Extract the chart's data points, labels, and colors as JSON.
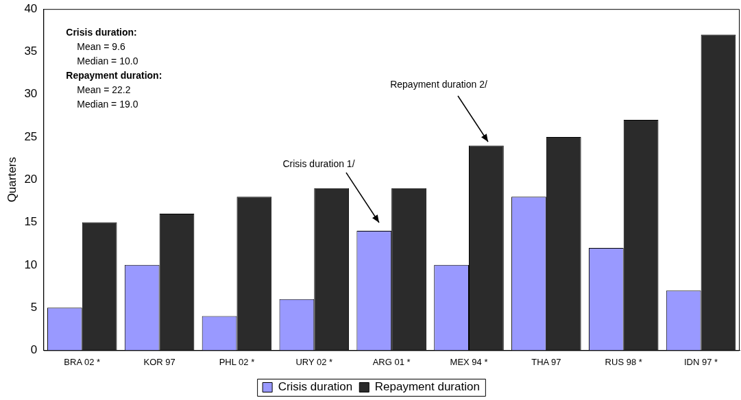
{
  "chart_data": {
    "type": "bar",
    "ylabel": "Quarters",
    "categories": [
      "BRA 02 *",
      "KOR 97",
      "PHL 02 *",
      "URY 02 *",
      "ARG 01 *",
      "MEX 94 *",
      "THA 97",
      "RUS 98 *",
      "IDN 97 *"
    ],
    "series": [
      {
        "name": "Crisis duration",
        "color": "#9999ff",
        "values": [
          5,
          10,
          4,
          6,
          14,
          10,
          18,
          12,
          7
        ]
      },
      {
        "name": "Repayment duration",
        "color": "#2b2b2b",
        "values": [
          15,
          16,
          18,
          19,
          19,
          24,
          25,
          27,
          37
        ]
      }
    ],
    "ylim": [
      0,
      40
    ],
    "yticks": [
      0,
      5,
      10,
      15,
      20,
      25,
      30,
      35,
      40
    ],
    "grid": false,
    "legend": "bottom",
    "annotations": [
      "Crisis duration:",
      "  Mean = 9.6",
      "  Median = 10.0",
      "Repayment duration:",
      "  Mean = 22.2",
      "  Median = 19.0",
      "Crisis duration 1/",
      "Repayment duration 2/"
    ]
  }
}
